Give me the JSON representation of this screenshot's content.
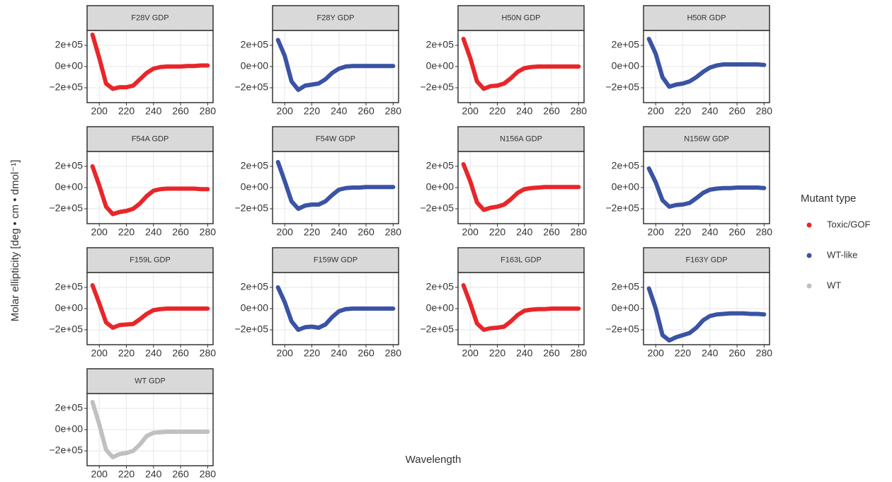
{
  "ylabel": "Molar ellipticity [deg • cm • dmol⁻¹]",
  "xlabel": "Wavelength",
  "legend": {
    "title": "Mutant type",
    "items": [
      {
        "name": "Toxic/GOF",
        "color": "#e8262a"
      },
      {
        "name": "WT-like",
        "color": "#3a53a4"
      },
      {
        "name": "WT",
        "color": "#c0c0c0"
      }
    ]
  },
  "chart_data": [
    {
      "type": "line",
      "title": "F28V GDP",
      "color": "#e8262a",
      "x": [
        195,
        200,
        205,
        210,
        215,
        220,
        225,
        230,
        235,
        240,
        245,
        250,
        255,
        260,
        265,
        270,
        275,
        280
      ],
      "values": [
        300000,
        80000,
        -160000,
        -210000,
        -195000,
        -195000,
        -180000,
        -120000,
        -60000,
        -20000,
        -5000,
        0,
        0,
        0,
        5000,
        5000,
        10000,
        10000
      ],
      "xlim": [
        191,
        284
      ],
      "xticks": [
        200,
        220,
        240,
        260,
        280
      ],
      "ylim": [
        -340000,
        340000
      ],
      "yticks": [
        {
          "value": -200000,
          "label": "−2e+05"
        },
        {
          "value": 0,
          "label": "0e+00"
        },
        {
          "value": 200000,
          "label": "2e+05"
        }
      ]
    },
    {
      "type": "line",
      "title": "F28Y GDP",
      "color": "#3a53a4",
      "x": [
        195,
        200,
        205,
        210,
        215,
        220,
        225,
        230,
        235,
        240,
        245,
        250,
        255,
        260,
        265,
        270,
        275,
        280
      ],
      "values": [
        250000,
        100000,
        -140000,
        -220000,
        -180000,
        -170000,
        -160000,
        -120000,
        -60000,
        -20000,
        0,
        5000,
        5000,
        5000,
        5000,
        5000,
        5000,
        5000
      ],
      "xlim": [
        191,
        284
      ],
      "xticks": [
        200,
        220,
        240,
        260,
        280
      ],
      "ylim": [
        -340000,
        340000
      ],
      "yticks": [
        {
          "value": -200000,
          "label": "−2e+05"
        },
        {
          "value": 0,
          "label": "0e+00"
        },
        {
          "value": 200000,
          "label": "2e+05"
        }
      ]
    },
    {
      "type": "line",
      "title": "H50N GDP",
      "color": "#e8262a",
      "x": [
        195,
        200,
        205,
        210,
        215,
        220,
        225,
        230,
        235,
        240,
        245,
        250,
        255,
        260,
        265,
        270,
        275,
        280
      ],
      "values": [
        260000,
        80000,
        -140000,
        -210000,
        -185000,
        -180000,
        -160000,
        -110000,
        -50000,
        -15000,
        -5000,
        0,
        0,
        0,
        0,
        0,
        0,
        0
      ],
      "xlim": [
        191,
        284
      ],
      "xticks": [
        200,
        220,
        240,
        260,
        280
      ],
      "ylim": [
        -340000,
        340000
      ],
      "yticks": [
        {
          "value": -200000,
          "label": "−2e+05"
        },
        {
          "value": 0,
          "label": "0e+00"
        },
        {
          "value": 200000,
          "label": "2e+05"
        }
      ]
    },
    {
      "type": "line",
      "title": "H50R GDP",
      "color": "#3a53a4",
      "x": [
        195,
        200,
        205,
        210,
        215,
        220,
        225,
        230,
        235,
        240,
        245,
        250,
        255,
        260,
        265,
        270,
        275,
        280
      ],
      "values": [
        260000,
        120000,
        -100000,
        -190000,
        -170000,
        -160000,
        -140000,
        -100000,
        -50000,
        -10000,
        10000,
        20000,
        20000,
        20000,
        20000,
        20000,
        20000,
        15000
      ],
      "xlim": [
        191,
        284
      ],
      "xticks": [
        200,
        220,
        240,
        260,
        280
      ],
      "ylim": [
        -340000,
        340000
      ],
      "yticks": [
        {
          "value": -200000,
          "label": "−2e+05"
        },
        {
          "value": 0,
          "label": "0e+00"
        },
        {
          "value": 200000,
          "label": "2e+05"
        }
      ]
    },
    {
      "type": "line",
      "title": "F54A GDP",
      "color": "#e8262a",
      "x": [
        195,
        200,
        205,
        210,
        215,
        220,
        225,
        230,
        235,
        240,
        245,
        250,
        255,
        260,
        265,
        270,
        275,
        280
      ],
      "values": [
        200000,
        20000,
        -180000,
        -250000,
        -230000,
        -220000,
        -200000,
        -150000,
        -80000,
        -30000,
        -15000,
        -10000,
        -10000,
        -10000,
        -10000,
        -10000,
        -15000,
        -15000
      ],
      "xlim": [
        191,
        284
      ],
      "xticks": [
        200,
        220,
        240,
        260,
        280
      ],
      "ylim": [
        -340000,
        340000
      ],
      "yticks": [
        {
          "value": -200000,
          "label": "−2e+05"
        },
        {
          "value": 0,
          "label": "0e+00"
        },
        {
          "value": 200000,
          "label": "2e+05"
        }
      ]
    },
    {
      "type": "line",
      "title": "F54W GDP",
      "color": "#3a53a4",
      "x": [
        195,
        200,
        205,
        210,
        215,
        220,
        225,
        230,
        235,
        240,
        245,
        250,
        255,
        260,
        265,
        270,
        275,
        280
      ],
      "values": [
        240000,
        60000,
        -130000,
        -200000,
        -170000,
        -160000,
        -160000,
        -130000,
        -70000,
        -20000,
        -5000,
        0,
        0,
        5000,
        5000,
        5000,
        5000,
        5000
      ],
      "xlim": [
        191,
        284
      ],
      "xticks": [
        200,
        220,
        240,
        260,
        280
      ],
      "ylim": [
        -340000,
        340000
      ],
      "yticks": [
        {
          "value": -200000,
          "label": "−2e+05"
        },
        {
          "value": 0,
          "label": "0e+00"
        },
        {
          "value": 200000,
          "label": "2e+05"
        }
      ]
    },
    {
      "type": "line",
      "title": "N156A GDP",
      "color": "#e8262a",
      "x": [
        195,
        200,
        205,
        210,
        215,
        220,
        225,
        230,
        235,
        240,
        245,
        250,
        255,
        260,
        265,
        270,
        275,
        280
      ],
      "values": [
        220000,
        60000,
        -140000,
        -210000,
        -190000,
        -180000,
        -160000,
        -110000,
        -50000,
        -15000,
        -5000,
        0,
        5000,
        5000,
        5000,
        5000,
        5000,
        5000
      ],
      "xlim": [
        191,
        284
      ],
      "xticks": [
        200,
        220,
        240,
        260,
        280
      ],
      "ylim": [
        -340000,
        340000
      ],
      "yticks": [
        {
          "value": -200000,
          "label": "−2e+05"
        },
        {
          "value": 0,
          "label": "0e+00"
        },
        {
          "value": 200000,
          "label": "2e+05"
        }
      ]
    },
    {
      "type": "line",
      "title": "N156W GDP",
      "color": "#3a53a4",
      "x": [
        195,
        200,
        205,
        210,
        215,
        220,
        225,
        230,
        235,
        240,
        245,
        250,
        255,
        260,
        265,
        270,
        275,
        280
      ],
      "values": [
        180000,
        50000,
        -120000,
        -180000,
        -165000,
        -160000,
        -145000,
        -100000,
        -50000,
        -20000,
        -10000,
        -5000,
        -5000,
        0,
        0,
        0,
        0,
        -5000
      ],
      "xlim": [
        191,
        284
      ],
      "xticks": [
        200,
        220,
        240,
        260,
        280
      ],
      "ylim": [
        -340000,
        340000
      ],
      "yticks": [
        {
          "value": -200000,
          "label": "−2e+05"
        },
        {
          "value": 0,
          "label": "0e+00"
        },
        {
          "value": 200000,
          "label": "2e+05"
        }
      ]
    },
    {
      "type": "line",
      "title": "F159L GDP",
      "color": "#e8262a",
      "x": [
        195,
        200,
        205,
        210,
        215,
        220,
        225,
        230,
        235,
        240,
        245,
        250,
        255,
        260,
        265,
        270,
        275,
        280
      ],
      "values": [
        220000,
        50000,
        -130000,
        -180000,
        -155000,
        -150000,
        -145000,
        -100000,
        -50000,
        -15000,
        -5000,
        0,
        0,
        0,
        0,
        0,
        0,
        0
      ],
      "xlim": [
        191,
        284
      ],
      "xticks": [
        200,
        220,
        240,
        260,
        280
      ],
      "ylim": [
        -340000,
        340000
      ],
      "yticks": [
        {
          "value": -200000,
          "label": "−2e+05"
        },
        {
          "value": 0,
          "label": "0e+00"
        },
        {
          "value": 200000,
          "label": "2e+05"
        }
      ]
    },
    {
      "type": "line",
      "title": "F159W GDP",
      "color": "#3a53a4",
      "x": [
        195,
        200,
        205,
        210,
        215,
        220,
        225,
        230,
        235,
        240,
        245,
        250,
        255,
        260,
        265,
        270,
        275,
        280
      ],
      "values": [
        200000,
        60000,
        -120000,
        -200000,
        -175000,
        -170000,
        -180000,
        -150000,
        -80000,
        -25000,
        -5000,
        0,
        0,
        0,
        0,
        0,
        0,
        0
      ],
      "xlim": [
        191,
        284
      ],
      "xticks": [
        200,
        220,
        240,
        260,
        280
      ],
      "ylim": [
        -340000,
        340000
      ],
      "yticks": [
        {
          "value": -200000,
          "label": "−2e+05"
        },
        {
          "value": 0,
          "label": "0e+00"
        },
        {
          "value": 200000,
          "label": "2e+05"
        }
      ]
    },
    {
      "type": "line",
      "title": "F163L GDP",
      "color": "#e8262a",
      "x": [
        195,
        200,
        205,
        210,
        215,
        220,
        225,
        230,
        235,
        240,
        245,
        250,
        255,
        260,
        265,
        270,
        275,
        280
      ],
      "values": [
        220000,
        50000,
        -140000,
        -200000,
        -185000,
        -180000,
        -170000,
        -120000,
        -60000,
        -20000,
        -10000,
        -5000,
        -5000,
        0,
        0,
        0,
        0,
        0
      ],
      "xlim": [
        191,
        284
      ],
      "xticks": [
        200,
        220,
        240,
        260,
        280
      ],
      "ylim": [
        -340000,
        340000
      ],
      "yticks": [
        {
          "value": -200000,
          "label": "−2e+05"
        },
        {
          "value": 0,
          "label": "0e+00"
        },
        {
          "value": 200000,
          "label": "2e+05"
        }
      ]
    },
    {
      "type": "line",
      "title": "F163Y GDP",
      "color": "#3a53a4",
      "x": [
        195,
        200,
        205,
        210,
        215,
        220,
        225,
        230,
        235,
        240,
        245,
        250,
        255,
        260,
        265,
        270,
        275,
        280
      ],
      "values": [
        190000,
        0,
        -250000,
        -300000,
        -270000,
        -250000,
        -230000,
        -180000,
        -110000,
        -70000,
        -55000,
        -50000,
        -45000,
        -45000,
        -45000,
        -50000,
        -50000,
        -55000
      ],
      "xlim": [
        191,
        284
      ],
      "xticks": [
        200,
        220,
        240,
        260,
        280
      ],
      "ylim": [
        -340000,
        340000
      ],
      "yticks": [
        {
          "value": -200000,
          "label": "−2e+05"
        },
        {
          "value": 0,
          "label": "0e+00"
        },
        {
          "value": 200000,
          "label": "2e+05"
        }
      ]
    },
    {
      "type": "line",
      "title": "WT GDP",
      "color": "#c0c0c0",
      "x": [
        195,
        200,
        205,
        210,
        215,
        220,
        225,
        230,
        235,
        240,
        245,
        250,
        255,
        260,
        265,
        270,
        275,
        280
      ],
      "values": [
        260000,
        50000,
        -190000,
        -260000,
        -230000,
        -220000,
        -200000,
        -140000,
        -60000,
        -30000,
        -25000,
        -20000,
        -20000,
        -20000,
        -20000,
        -20000,
        -20000,
        -20000
      ],
      "xlim": [
        191,
        284
      ],
      "xticks": [
        200,
        220,
        240,
        260,
        280
      ],
      "ylim": [
        -340000,
        340000
      ],
      "yticks": [
        {
          "value": -200000,
          "label": "−2e+05"
        },
        {
          "value": 0,
          "label": "0e+00"
        },
        {
          "value": 200000,
          "label": "2e+05"
        }
      ]
    }
  ]
}
